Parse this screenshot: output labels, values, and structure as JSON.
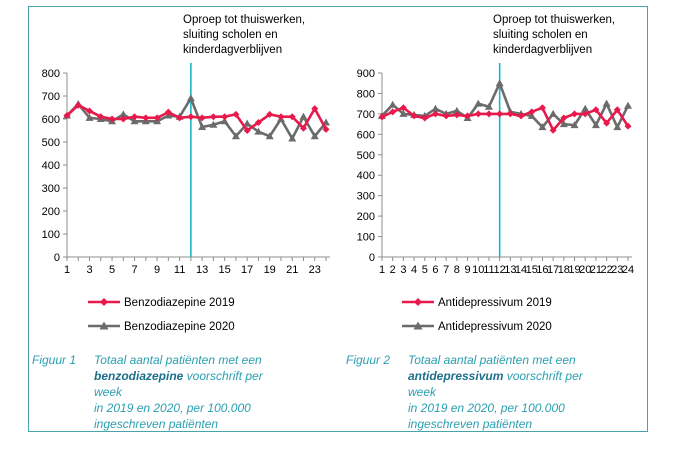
{
  "colors": {
    "series_2019": "#e8194b",
    "series_2020": "#6b6b6b",
    "intervention": "#19b5c8",
    "caption": "#2a9fb0",
    "caption_bold": "#1e6f8c",
    "frame": "#4aa3a8"
  },
  "chart_data": [
    {
      "type": "line",
      "title": "",
      "xlabel": "",
      "ylabel": "",
      "x": [
        1,
        2,
        3,
        4,
        5,
        6,
        7,
        8,
        9,
        10,
        11,
        12,
        13,
        14,
        15,
        16,
        17,
        18,
        19,
        20,
        21,
        22,
        23,
        24
      ],
      "x_tick_labels": [
        "1",
        "3",
        "5",
        "7",
        "9",
        "11",
        "13",
        "15",
        "17",
        "19",
        "21",
        "23"
      ],
      "ylim": [
        0,
        800
      ],
      "y_ticks": [
        0,
        100,
        200,
        300,
        400,
        500,
        600,
        700,
        800
      ],
      "grid": false,
      "annotation": {
        "x": 12,
        "lines": [
          "Oproep tot thuiswerken,",
          "sluiting scholen en",
          "kinderdagverblijven"
        ]
      },
      "series": [
        {
          "name": "Benzodiazepine 2019",
          "marker": "diamond",
          "values": [
            615,
            660,
            635,
            610,
            600,
            600,
            610,
            605,
            605,
            630,
            605,
            610,
            605,
            610,
            610,
            620,
            550,
            585,
            620,
            610,
            610,
            560,
            645,
            555
          ]
        },
        {
          "name": "Benzodiazepine 2020",
          "marker": "triangle",
          "values": [
            615,
            665,
            605,
            600,
            590,
            620,
            590,
            590,
            590,
            615,
            610,
            690,
            565,
            575,
            590,
            525,
            580,
            545,
            525,
            600,
            515,
            610,
            525,
            585
          ]
        }
      ]
    },
    {
      "type": "line",
      "title": "",
      "xlabel": "",
      "ylabel": "",
      "x": [
        1,
        2,
        3,
        4,
        5,
        6,
        7,
        8,
        9,
        10,
        11,
        12,
        13,
        14,
        15,
        16,
        17,
        18,
        19,
        20,
        21,
        22,
        23,
        24
      ],
      "x_tick_labels": [
        "1",
        "2",
        "3",
        "4",
        "5",
        "6",
        "7",
        "8",
        "9",
        "10",
        "11",
        "12",
        "13",
        "14",
        "15",
        "16",
        "17",
        "18",
        "19",
        "20",
        "21",
        "22",
        "23",
        "24"
      ],
      "ylim": [
        0,
        900
      ],
      "y_ticks": [
        0,
        100,
        200,
        300,
        400,
        500,
        600,
        700,
        800,
        900
      ],
      "grid": false,
      "annotation": {
        "x": 12,
        "lines": [
          "Oproep tot thuiswerken,",
          "sluiting scholen en",
          "kinderdagverblijven"
        ]
      },
      "series": [
        {
          "name": "Antidepressivum 2019",
          "marker": "diamond",
          "values": [
            685,
            710,
            730,
            690,
            680,
            700,
            690,
            695,
            690,
            700,
            700,
            700,
            700,
            690,
            710,
            730,
            620,
            680,
            700,
            700,
            720,
            655,
            720,
            640
          ]
        },
        {
          "name": "Antidepressivum 2020",
          "marker": "triangle",
          "values": [
            690,
            745,
            700,
            695,
            690,
            725,
            700,
            715,
            680,
            750,
            735,
            850,
            710,
            700,
            690,
            635,
            700,
            650,
            645,
            725,
            645,
            750,
            635,
            740
          ]
        }
      ]
    }
  ],
  "captions": [
    {
      "number": "Figuur 1",
      "line1": "Totaal aantal patiënten met een",
      "bold": "benzodiazepine",
      "after_bold": " voorschrift per week",
      "line3": " in  2019 en 2020,  per 100.000",
      "line4": "ingeschreven patiënten"
    },
    {
      "number": "Figuur 2",
      "line1": "Totaal aantal patiënten met een",
      "bold": "antidepressivum",
      "after_bold": " voorschrift per week",
      "line3": "in 2019 en 2020,  per 100.000",
      "line4": "ingeschreven patiënten"
    }
  ]
}
